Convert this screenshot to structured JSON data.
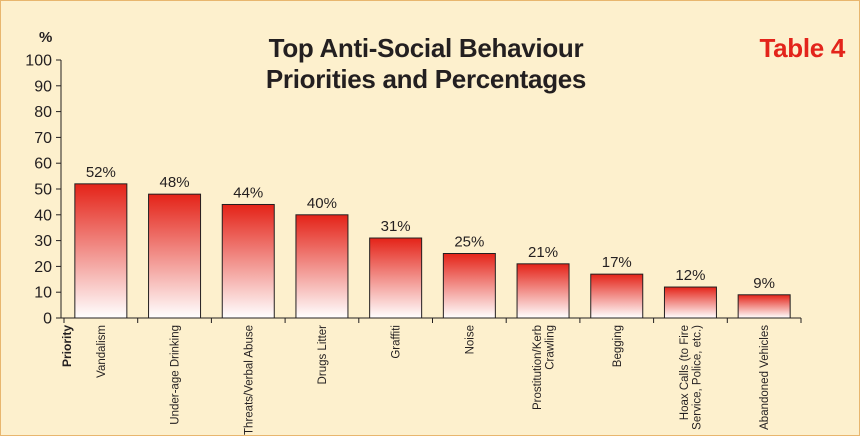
{
  "header": {
    "title_line1": "Top Anti-Social Behaviour",
    "title_line2": "Priorities and Percentages",
    "tag": "Table 4"
  },
  "colors": {
    "background": "#fdf0cd",
    "bar_top": "#e42318",
    "bar_bottom": "#ffffff",
    "tag": "#e3241b"
  },
  "chart_data": {
    "type": "bar",
    "title": "Top Anti-Social Behaviour Priorities and Percentages",
    "ylabel": "%",
    "xlabel": "Priority",
    "ylim": [
      0,
      100
    ],
    "yticks": [
      0,
      10,
      20,
      30,
      40,
      50,
      60,
      70,
      80,
      90,
      100
    ],
    "grid": false,
    "categories": [
      "Vandalism",
      "Under-age Drinking",
      "Threats/Verbal Abuse",
      "Drugs Litter",
      "Graffiti",
      "Noise",
      "Prostitution/Kerb Crawling",
      "Begging",
      "Hoax Calls (to Fire Service, Police, etc.)",
      "Abandoned Vehicles"
    ],
    "category_lines": [
      [
        "Vandalism"
      ],
      [
        "Under-age Drinking"
      ],
      [
        "Threats/Verbal Abuse"
      ],
      [
        "Drugs Litter"
      ],
      [
        "Graffiti"
      ],
      [
        "Noise"
      ],
      [
        "Prostitution/Kerb",
        "Crawling"
      ],
      [
        "Begging"
      ],
      [
        "Hoax Calls (to Fire",
        "Service, Police, etc.)"
      ],
      [
        "Abandoned Vehicles"
      ]
    ],
    "values": [
      52,
      48,
      44,
      40,
      31,
      25,
      21,
      17,
      12,
      9
    ],
    "data_labels": [
      "52%",
      "48%",
      "44%",
      "40%",
      "31%",
      "25%",
      "21%",
      "17%",
      "12%",
      "9%"
    ]
  }
}
